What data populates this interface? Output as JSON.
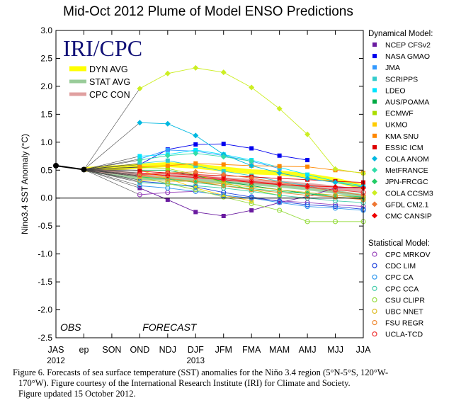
{
  "chart_data": {
    "type": "line",
    "title": "Mid-Oct 2012 Plume of Model ENSO Predictions",
    "ylabel": "Nino3.4 SST Anomaly (°C)",
    "xlabel": "",
    "ylim": [
      -2.5,
      3.0
    ],
    "yticks": [
      "3.0",
      "2.5",
      "2.0",
      "1.5",
      "1.0",
      "0.5",
      "0.0",
      "-0.5",
      "-1.0",
      "-1.5",
      "-2.0",
      "-2.5"
    ],
    "categories": [
      "JAS",
      "ep",
      "SON",
      "OND",
      "NDJ",
      "DJF",
      "JFM",
      "FMA",
      "MAM",
      "AMJ",
      "MJJ",
      "JJA"
    ],
    "year_labels": [
      {
        "label": "2012",
        "at": "JAS"
      },
      {
        "label": "2013",
        "at": "DJF"
      }
    ],
    "phase_labels": {
      "obs": "OBS",
      "forecast": "FORECAST"
    },
    "logo": "IRI/CPC",
    "observed": {
      "x": [
        "JAS",
        "ep"
      ],
      "values": [
        0.58,
        0.51
      ]
    },
    "averages": [
      {
        "name": "DYN AVG",
        "color": "#ffff00",
        "values": [
          0.57,
          0.6,
          0.57,
          0.52,
          0.47,
          0.45,
          0.4,
          0.32,
          0.2
        ]
      },
      {
        "name": "STAT AVG",
        "color": "#99cc99",
        "values": [
          0.36,
          0.35,
          0.33,
          0.29,
          0.26,
          0.22,
          0.17,
          0.11,
          0.04
        ]
      },
      {
        "name": "CPC CON",
        "color": "#e0a0a0",
        "values": [
          0.42,
          0.41,
          0.38,
          0.34,
          0.31,
          0.28,
          0.24,
          0.19,
          0.13
        ]
      }
    ],
    "legend_groups": [
      "Dynamical Model:",
      "Statistical Model:"
    ],
    "dynamical": [
      {
        "name": "NCEP CFSv2",
        "color": "#6a1ba0",
        "marker": "square",
        "values": [
          0.18,
          -0.03,
          -0.25,
          -0.32,
          -0.22,
          -0.08,
          0.03,
          0.18,
          0.2
        ]
      },
      {
        "name": "NASA GMAO",
        "color": "#0000ee",
        "marker": "square",
        "values": [
          0.6,
          0.87,
          0.96,
          0.97,
          0.89,
          0.76,
          0.68,
          null,
          null
        ]
      },
      {
        "name": "JMA",
        "color": "#3399ff",
        "marker": "square",
        "values": [
          0.7,
          0.86,
          0.84,
          0.76,
          0.66,
          0.53,
          null,
          null,
          null
        ]
      },
      {
        "name": "SCRIPPS",
        "color": "#33cccc",
        "marker": "square",
        "values": [
          0.62,
          0.67,
          0.58,
          0.48,
          0.4,
          0.3,
          0.22,
          0.12,
          0.05
        ]
      },
      {
        "name": "LDEO",
        "color": "#00e5ff",
        "marker": "square",
        "values": [
          0.75,
          0.78,
          0.86,
          0.78,
          0.68,
          0.55,
          0.42,
          0.3,
          0.22
        ]
      },
      {
        "name": "AUS/POAMA",
        "color": "#00aa44",
        "marker": "square",
        "values": [
          0.5,
          0.5,
          0.4,
          0.3,
          0.22,
          0.15,
          0.08,
          0.02,
          -0.02
        ]
      },
      {
        "name": "ECMWF",
        "color": "#aadd00",
        "marker": "square",
        "values": [
          0.55,
          0.53,
          0.42,
          0.28,
          0.15,
          0.05,
          null,
          null,
          null
        ]
      },
      {
        "name": "UKMO",
        "color": "#ffcc00",
        "marker": "square",
        "values": [
          0.5,
          0.35,
          0.18,
          0.05,
          -0.05,
          null,
          null,
          null,
          null
        ]
      },
      {
        "name": "KMA SNU",
        "color": "#ff8800",
        "marker": "square",
        "values": [
          0.56,
          0.58,
          0.62,
          0.6,
          0.58,
          0.57,
          0.56,
          0.5,
          0.45
        ]
      },
      {
        "name": "ESSIC ICM",
        "color": "#dd0000",
        "marker": "square",
        "values": [
          0.48,
          0.45,
          0.42,
          0.4,
          0.38,
          0.35,
          0.33,
          0.3,
          0.28
        ]
      },
      {
        "name": "COLA ANOM",
        "color": "#00b8e0",
        "marker": "diamond",
        "values": [
          1.35,
          1.33,
          1.12,
          0.78,
          0.58,
          0.45,
          0.35,
          0.28,
          0.2
        ]
      },
      {
        "name": "MetFRANCE",
        "color": "#33ddaa",
        "marker": "diamond",
        "values": [
          0.68,
          0.76,
          0.8,
          0.74,
          0.66,
          null,
          null,
          null,
          null
        ]
      },
      {
        "name": "JPN-FRCGC",
        "color": "#22cc66",
        "marker": "diamond",
        "values": [
          0.38,
          0.34,
          0.28,
          0.22,
          0.17,
          0.12,
          0.08,
          0.05,
          0.02
        ]
      },
      {
        "name": "COLA CCSM3",
        "color": "#ccee22",
        "marker": "diamond",
        "values": [
          1.96,
          2.23,
          2.33,
          2.25,
          1.98,
          1.6,
          1.14,
          0.52,
          0.44
        ]
      },
      {
        "name": "GFDL CM2.1",
        "color": "#ee7733",
        "marker": "diamond",
        "values": [
          0.4,
          0.45,
          0.47,
          0.42,
          0.36,
          0.28,
          0.2,
          0.12,
          0.05
        ]
      },
      {
        "name": "CMC CANSIP",
        "color": "#ee0000",
        "marker": "diamond",
        "values": [
          0.45,
          0.4,
          0.37,
          0.33,
          0.28,
          0.24,
          0.22,
          0.2,
          0.18
        ]
      }
    ],
    "statistical": [
      {
        "name": "CPC MRKOV",
        "color": "#9944bb",
        "marker": "circle",
        "values": [
          0.06,
          0.1,
          0.12,
          0.05,
          0.0,
          -0.05,
          -0.08,
          -0.12,
          -0.15
        ]
      },
      {
        "name": "CDC LIM",
        "color": "#2244dd",
        "marker": "circle",
        "values": [
          0.3,
          0.26,
          0.2,
          0.1,
          0.02,
          -0.06,
          -0.12,
          -0.15,
          -0.2
        ]
      },
      {
        "name": "CPC CA",
        "color": "#3399ee",
        "marker": "circle",
        "values": [
          0.22,
          0.18,
          0.12,
          0.05,
          0.0,
          -0.08,
          -0.15,
          -0.18,
          -0.22
        ]
      },
      {
        "name": "CPC CCA",
        "color": "#44ccaa",
        "marker": "circle",
        "values": [
          0.28,
          0.25,
          0.22,
          0.18,
          0.12,
          0.05,
          0.0,
          -0.05,
          -0.08
        ]
      },
      {
        "name": "CSU CLIPR",
        "color": "#99dd44",
        "marker": "circle",
        "values": [
          0.38,
          0.26,
          0.15,
          0.02,
          -0.1,
          -0.22,
          -0.42,
          -0.42,
          -0.42
        ]
      },
      {
        "name": "UBC NNET",
        "color": "#ddbb22",
        "marker": "circle",
        "values": [
          0.32,
          0.3,
          0.3,
          0.25,
          0.2,
          0.15,
          0.1,
          0.05,
          0.0
        ]
      },
      {
        "name": "FSU REGR",
        "color": "#ee8833",
        "marker": "circle",
        "values": [
          0.4,
          0.35,
          0.3,
          0.22,
          0.15,
          0.1,
          0.05,
          0.02,
          -0.03
        ]
      },
      {
        "name": "UCLA-TCD",
        "color": "#ee3333",
        "marker": "circle",
        "values": [
          0.42,
          0.45,
          0.4,
          0.35,
          0.3,
          0.25,
          0.2,
          0.15,
          0.1
        ]
      }
    ]
  },
  "caption": {
    "line1": "Figure 6. Forecasts of sea surface temperature (SST) anomalies for the Niño 3.4 region (5°N-5°S, 120°W-",
    "line2": "170°W).  Figure courtesy of the International Research Institute (IRI) for Climate and Society.",
    "line3": "Figure updated 15 October 2012."
  }
}
